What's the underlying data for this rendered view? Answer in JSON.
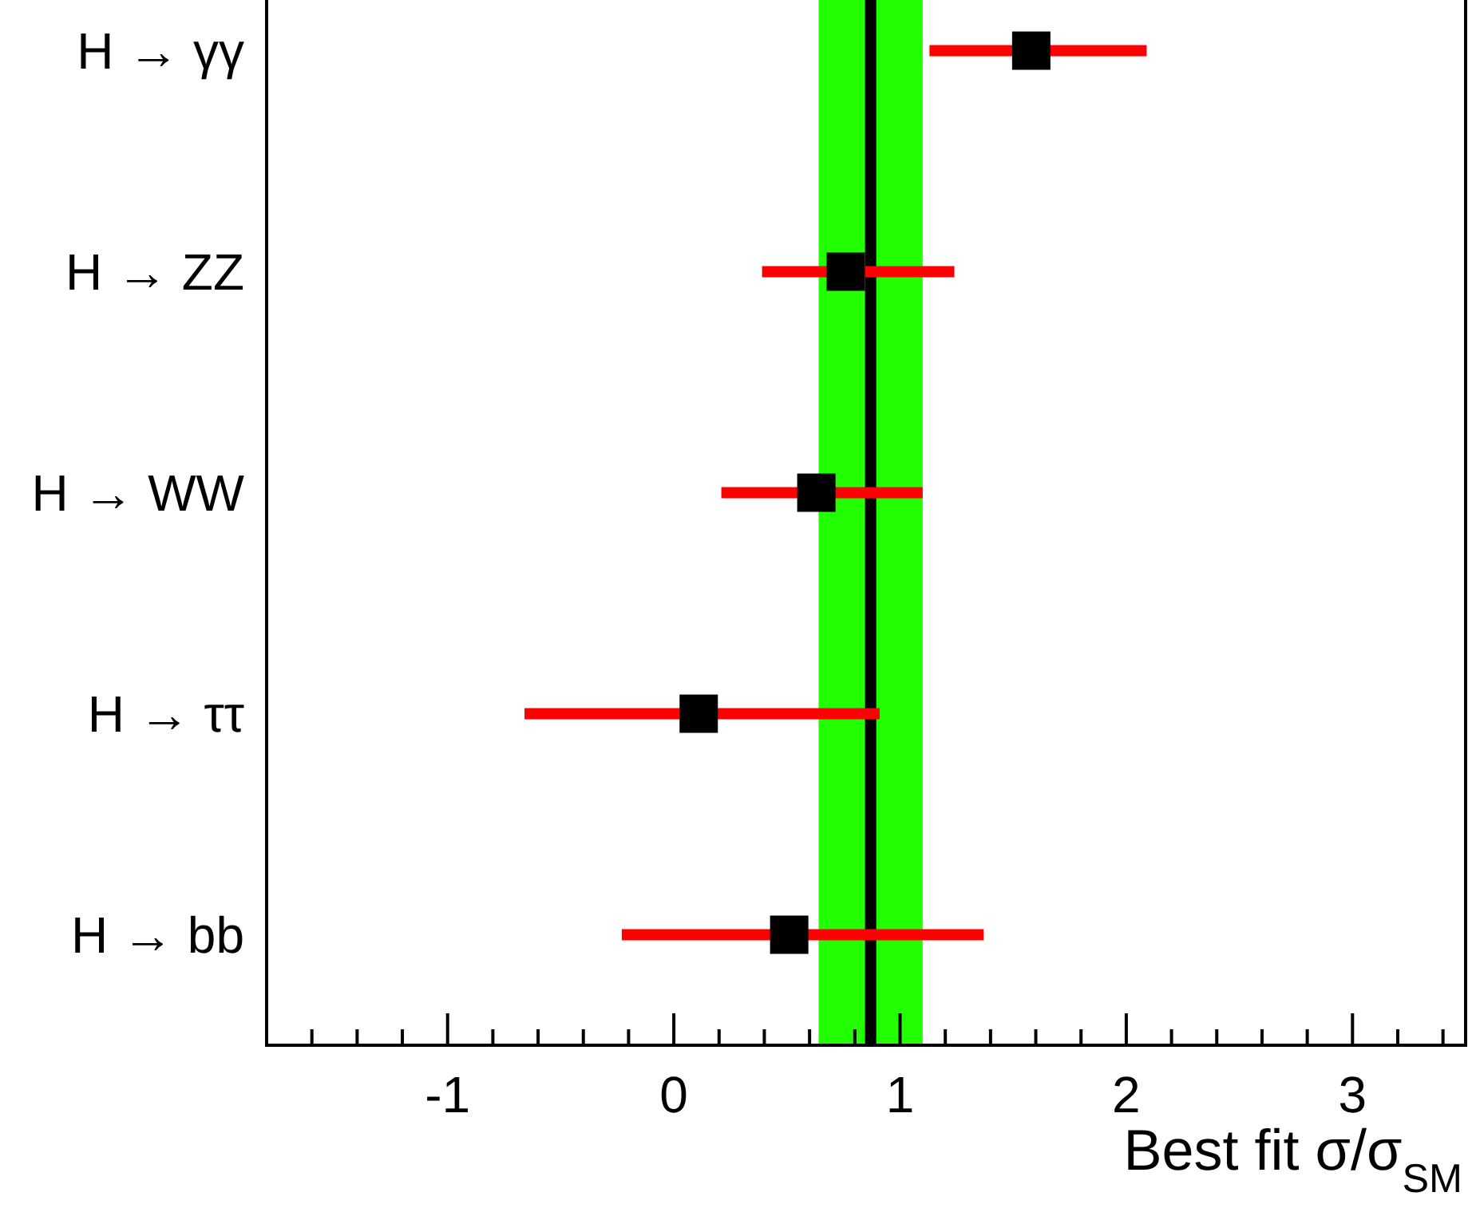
{
  "chart_data": {
    "type": "scatter",
    "orientation": "horizontal",
    "xlabel": "Best fit σ/σ$_{SM}$",
    "categories": [
      "H → γγ",
      "H → ZZ",
      "H → WW",
      "H → ττ",
      "H → bb"
    ],
    "series": [
      {
        "color": "#000000",
        "values": [
          1.58,
          0.76,
          0.63,
          0.11,
          0.51
        ],
        "errors": [
          [
            1.13,
            2.09
          ],
          [
            0.39,
            1.24
          ],
          [
            0.21,
            1.1
          ],
          [
            -0.66,
            0.91
          ],
          [
            -0.23,
            1.37
          ]
        ]
      }
    ],
    "marker": "square",
    "xlim": [
      -1.8,
      3.5
    ],
    "xticks": [
      {
        "value": -1.6,
        "label": null
      },
      {
        "value": -1.4,
        "label": null
      },
      {
        "value": -1.2,
        "label": null
      },
      -1,
      {
        "value": -0.8,
        "label": null
      },
      {
        "value": -0.6,
        "label": null
      },
      {
        "value": -0.4,
        "label": null
      },
      {
        "value": -0.2,
        "label": null
      },
      0,
      {
        "value": 0.2,
        "label": null
      },
      {
        "value": 0.4,
        "label": null
      },
      {
        "value": 0.6,
        "label": null
      },
      {
        "value": 0.8,
        "label": null
      },
      1,
      {
        "value": 1.2,
        "label": null
      },
      {
        "value": 1.4,
        "label": null
      },
      {
        "value": 1.6,
        "label": null
      },
      {
        "value": 1.8,
        "label": null
      },
      2,
      {
        "value": 2.2,
        "label": null
      },
      {
        "value": 2.4,
        "label": null
      },
      {
        "value": 2.6,
        "label": null
      },
      {
        "value": 2.8,
        "label": null
      },
      3,
      {
        "value": 3.2,
        "label": null
      },
      {
        "value": 3.4,
        "label": null
      }
    ],
    "bands": [
      {
        "axis": "x",
        "from": 0.64,
        "to": 1.1,
        "color": "#22ff00"
      }
    ],
    "ref_lines": [
      {
        "axis": "x",
        "value": 0.87,
        "color": "#000000"
      }
    ],
    "grid": false
  }
}
